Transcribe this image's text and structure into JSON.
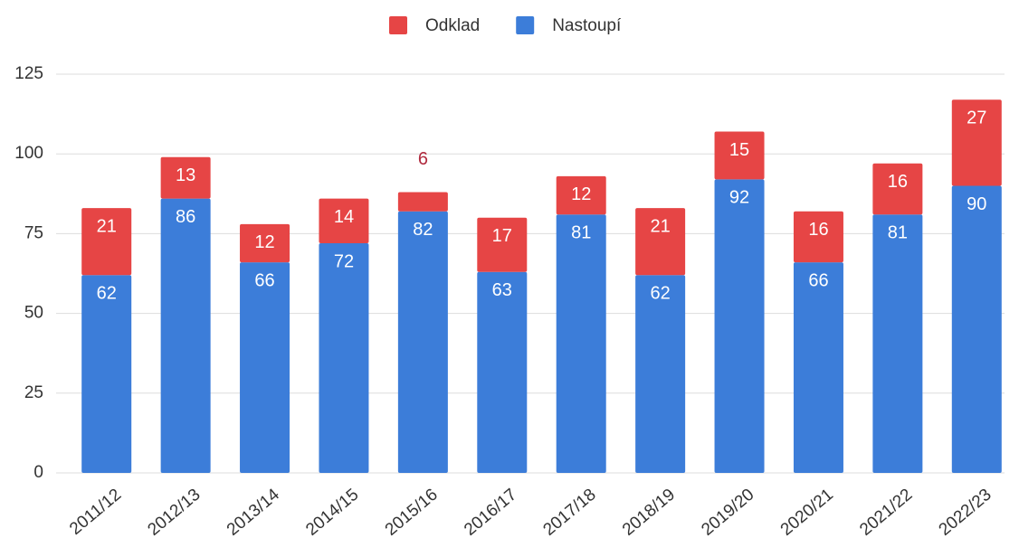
{
  "chart_data": {
    "type": "stacked_bar",
    "categories": [
      "2011/12",
      "2012/13",
      "2013/14",
      "2014/15",
      "2015/16",
      "2016/17",
      "2017/18",
      "2018/19",
      "2019/20",
      "2020/21",
      "2021/22",
      "2022/23"
    ],
    "series": [
      {
        "name": "Nastoupí",
        "color": "#3c7dd9",
        "values": [
          62,
          86,
          66,
          72,
          82,
          63,
          81,
          62,
          92,
          66,
          81,
          90
        ]
      },
      {
        "name": "Odklad",
        "color": "#e64545",
        "values": [
          21,
          13,
          12,
          14,
          6,
          17,
          12,
          21,
          15,
          16,
          16,
          27
        ]
      }
    ],
    "legend_order": [
      "Odklad",
      "Nastoupí"
    ],
    "ylim": [
      0,
      125
    ],
    "yticks": [
      0,
      25,
      50,
      75,
      100,
      125
    ],
    "grid": true
  }
}
